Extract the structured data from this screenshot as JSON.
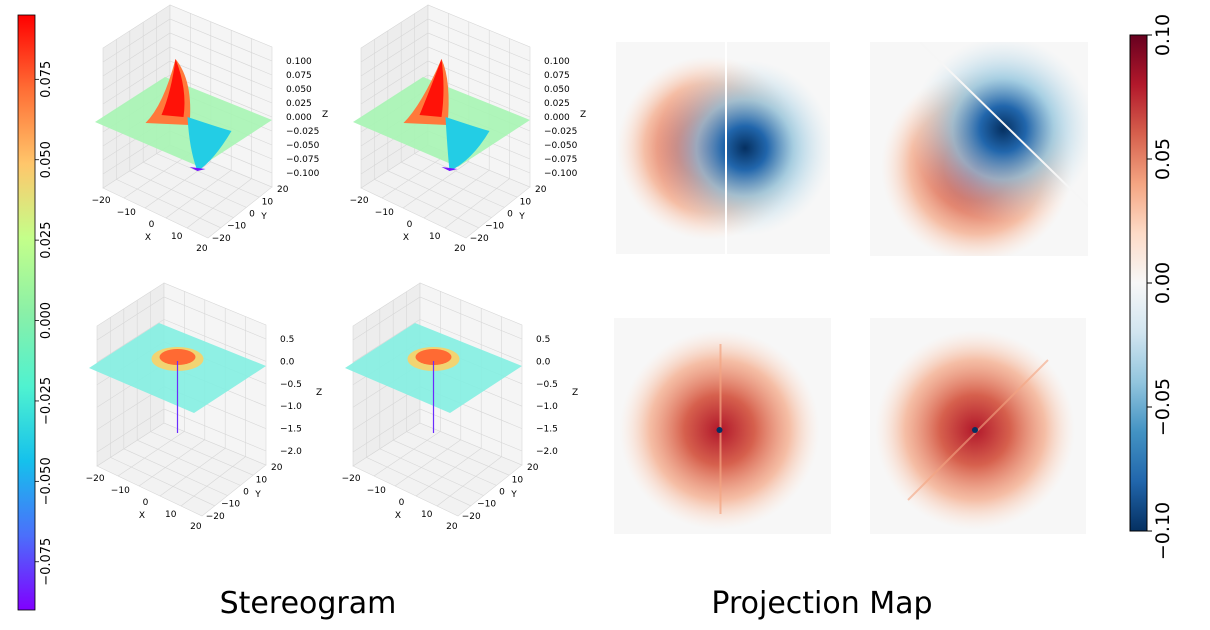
{
  "captions": {
    "left": "Stereogram",
    "right": "Projection Map"
  },
  "colors": {
    "rainbow": [
      "#8000ff",
      "#4b6ffb",
      "#15c1ec",
      "#4ff2d0",
      "#8af0a7",
      "#c4ff8a",
      "#ffc66b",
      "#ff6e35",
      "#ff0000"
    ],
    "rdbu": [
      "#053061",
      "#2166ac",
      "#4393c3",
      "#92c5de",
      "#d1e5f0",
      "#f7f7f7",
      "#fddbc7",
      "#f4a582",
      "#d6604d",
      "#b2182b",
      "#67001f"
    ],
    "grid_pane": "#f2f2f2",
    "grid_line": "#d7d7d7"
  },
  "chart_data": [
    {
      "type": "colorbar",
      "name": "left-colorbar",
      "colormap": "rainbow",
      "range": [
        -0.09,
        0.095
      ],
      "ticks": [
        -0.075,
        -0.05,
        -0.025,
        0.0,
        0.025,
        0.05,
        0.075
      ],
      "tick_labels": [
        "−0.075",
        "−0.050",
        "−0.025",
        "0.000",
        "0.025",
        "0.050",
        "0.075"
      ]
    },
    {
      "type": "surface3d",
      "name": "surface-top-left",
      "xlabel": "X",
      "ylabel": "Y",
      "zlabel": "Z",
      "x_ticks": [
        "−20",
        "−10",
        "0",
        "10",
        "20"
      ],
      "y_ticks": [
        "−20",
        "−10",
        "0",
        "10",
        "20"
      ],
      "z_ticks": [
        "−0.100",
        "−0.075",
        "−0.050",
        "−0.025",
        "0.000",
        "0.025",
        "0.050",
        "0.075",
        "0.100"
      ],
      "zlim": [
        -0.1,
        0.1
      ],
      "shape": "dipole-vertical-split"
    },
    {
      "type": "surface3d",
      "name": "surface-top-right",
      "xlabel": "X",
      "ylabel": "Y",
      "zlabel": "Z",
      "x_ticks": [
        "−20",
        "−10",
        "0",
        "10",
        "20"
      ],
      "y_ticks": [
        "−20",
        "−10",
        "0",
        "10",
        "20"
      ],
      "z_ticks": [
        "−0.100",
        "−0.075",
        "−0.050",
        "−0.025",
        "0.000",
        "0.025",
        "0.050",
        "0.075",
        "0.100"
      ],
      "zlim": [
        -0.1,
        0.1
      ],
      "shape": "dipole-diagonal-split"
    },
    {
      "type": "surface3d",
      "name": "surface-bottom-left",
      "xlabel": "X",
      "ylabel": "Y",
      "zlabel": "Z",
      "x_ticks": [
        "−20",
        "−10",
        "0",
        "10",
        "20"
      ],
      "y_ticks": [
        "−20",
        "−10",
        "0",
        "10",
        "20"
      ],
      "z_ticks": [
        "−2.0",
        "−1.5",
        "−1.0",
        "−0.5",
        "0.0",
        "0.5"
      ],
      "zlim": [
        -2.0,
        0.5
      ],
      "shape": "ring-with-spike"
    },
    {
      "type": "surface3d",
      "name": "surface-bottom-right",
      "xlabel": "X",
      "ylabel": "Y",
      "zlabel": "Z",
      "x_ticks": [
        "−20",
        "−10",
        "0",
        "10",
        "20"
      ],
      "y_ticks": [
        "−20",
        "−10",
        "0",
        "10",
        "20"
      ],
      "z_ticks": [
        "−2.0",
        "−1.5",
        "−1.0",
        "−0.5",
        "0.0",
        "0.5"
      ],
      "zlim": [
        -2.0,
        0.5
      ],
      "shape": "ring-with-spike"
    },
    {
      "type": "heatmap",
      "name": "heatmap-top-left",
      "colormap": "RdBu_r",
      "vmin": -0.1,
      "vmax": 0.1,
      "pattern": "dipole-vertical-split"
    },
    {
      "type": "heatmap",
      "name": "heatmap-top-right",
      "colormap": "RdBu_r",
      "vmin": -0.1,
      "vmax": 0.1,
      "pattern": "dipole-diagonal-split"
    },
    {
      "type": "heatmap",
      "name": "heatmap-bottom-left",
      "colormap": "RdBu_r",
      "vmin": -0.1,
      "vmax": 0.1,
      "pattern": "ring-vertical-split"
    },
    {
      "type": "heatmap",
      "name": "heatmap-bottom-right",
      "colormap": "RdBu_r",
      "vmin": -0.1,
      "vmax": 0.1,
      "pattern": "ring-diagonal-split"
    },
    {
      "type": "colorbar",
      "name": "right-colorbar",
      "colormap": "RdBu_r",
      "range": [
        -0.1,
        0.1
      ],
      "ticks": [
        -0.1,
        -0.05,
        0.0,
        0.05,
        0.1
      ],
      "tick_labels": [
        "−0.10",
        "−0.05",
        "0.00",
        "0.05",
        "0.10"
      ]
    }
  ]
}
